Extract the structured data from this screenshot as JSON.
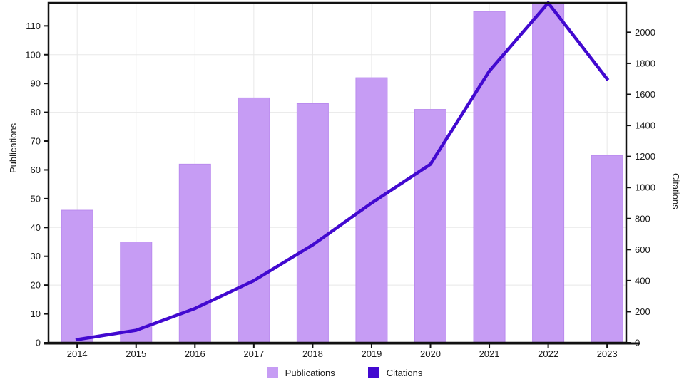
{
  "chart_data": {
    "type": "bar+line-dual-axis",
    "title": "",
    "categories": [
      "2014",
      "2015",
      "2016",
      "2017",
      "2018",
      "2019",
      "2020",
      "2021",
      "2022",
      "2023"
    ],
    "series": [
      {
        "name": "Publications",
        "type": "bar",
        "axis": "left",
        "color": "#C69CF4",
        "edge_color": "#BA8BEE",
        "values": [
          46,
          35,
          62,
          85,
          83,
          92,
          81,
          115,
          118,
          65
        ]
      },
      {
        "name": "Citations",
        "type": "line",
        "axis": "right",
        "color": "#4209D0",
        "values": [
          20,
          80,
          220,
          400,
          630,
          900,
          1150,
          1750,
          2190,
          1700
        ]
      }
    ],
    "left_axis": {
      "label": "Publications",
      "min": 0,
      "max": 118,
      "ticks": [
        0,
        10,
        20,
        30,
        40,
        50,
        60,
        70,
        80,
        90,
        100,
        110
      ],
      "grid_ticks": [
        20,
        40,
        60,
        80,
        100
      ]
    },
    "right_axis": {
      "label": "Citations",
      "min": 0,
      "max": 2190,
      "ticks": [
        0,
        200,
        400,
        600,
        800,
        1000,
        1200,
        1400,
        1600,
        1800,
        2000
      ]
    },
    "grid": true,
    "legend_position": "bottom-center",
    "legend": [
      "Publications",
      "Citations"
    ]
  },
  "colors": {
    "background": "#ffffff",
    "grid": "#E8E8E8",
    "axis": "#111111",
    "tick_text": "#1a1a1a"
  }
}
